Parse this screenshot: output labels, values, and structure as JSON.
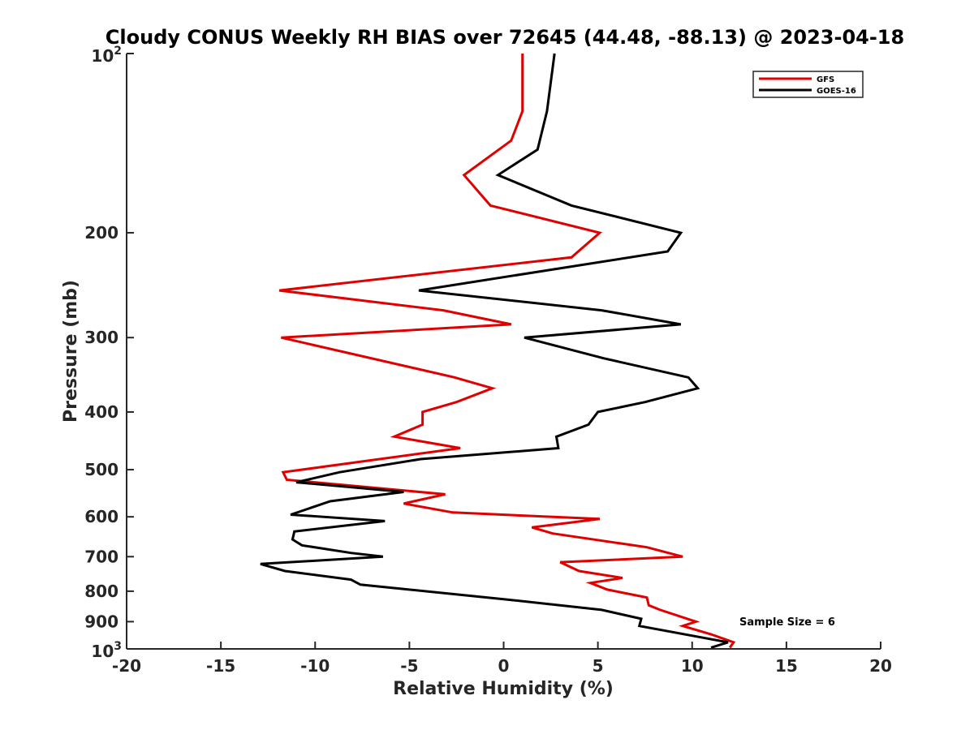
{
  "chart_data": {
    "type": "line",
    "title": "Cloudy CONUS Weekly RH BIAS over 72645 (44.48, -88.13) @ 2023-04-18",
    "xlabel": "Relative Humidity (%)",
    "ylabel": "Pressure (mb)",
    "xlim": [
      -20,
      20
    ],
    "ylim": [
      100,
      1000
    ],
    "yscale": "log",
    "y_reversed": true,
    "grid": false,
    "legend_position": "top-right",
    "x_ticks": [
      "-20",
      "-15",
      "-10",
      "-5",
      "0",
      "5",
      "10",
      "15",
      "20"
    ],
    "y_ticks": [
      {
        "value": 100,
        "base": "10",
        "exp": "2"
      },
      {
        "value": 200,
        "label": "200"
      },
      {
        "value": 300,
        "label": "300"
      },
      {
        "value": 400,
        "label": "400"
      },
      {
        "value": 500,
        "label": "500"
      },
      {
        "value": 600,
        "label": "600"
      },
      {
        "value": 700,
        "label": "700"
      },
      {
        "value": 800,
        "label": "800"
      },
      {
        "value": 900,
        "label": "900"
      },
      {
        "value": 1000,
        "base": "10",
        "exp": "3"
      }
    ],
    "annotation": "Sample Size = 6",
    "series": [
      {
        "name": "GFS",
        "color": "#e00000",
        "points": [
          [
            1.0,
            100
          ],
          [
            1.0,
            125
          ],
          [
            0.4,
            140
          ],
          [
            -2.1,
            160
          ],
          [
            -0.7,
            180
          ],
          [
            5.1,
            200
          ],
          [
            3.6,
            220
          ],
          [
            -11.9,
            250
          ],
          [
            -3.2,
            270
          ],
          [
            0.4,
            285
          ],
          [
            -11.8,
            300
          ],
          [
            -2.6,
            350
          ],
          [
            -0.6,
            365
          ],
          [
            -2.5,
            385
          ],
          [
            -4.3,
            400
          ],
          [
            -4.3,
            420
          ],
          [
            -5.8,
            440
          ],
          [
            -2.3,
            460
          ],
          [
            -11.7,
            505
          ],
          [
            -11.5,
            520
          ],
          [
            -3.1,
            550
          ],
          [
            -5.3,
            570
          ],
          [
            -2.7,
            590
          ],
          [
            5.1,
            605
          ],
          [
            1.5,
            625
          ],
          [
            2.6,
            640
          ],
          [
            7.6,
            675
          ],
          [
            9.5,
            700
          ],
          [
            3.0,
            715
          ],
          [
            4.0,
            740
          ],
          [
            6.3,
            760
          ],
          [
            4.6,
            775
          ],
          [
            5.5,
            795
          ],
          [
            7.6,
            820
          ],
          [
            7.7,
            845
          ],
          [
            8.3,
            860
          ],
          [
            10.2,
            900
          ],
          [
            9.5,
            915
          ],
          [
            11.0,
            945
          ],
          [
            12.2,
            975
          ],
          [
            12.0,
            995
          ]
        ]
      },
      {
        "name": "GOES-16",
        "color": "#000000",
        "points": [
          [
            2.7,
            100
          ],
          [
            2.3,
            125
          ],
          [
            1.8,
            145
          ],
          [
            -0.3,
            160
          ],
          [
            3.6,
            180
          ],
          [
            9.4,
            200
          ],
          [
            8.7,
            215
          ],
          [
            -4.5,
            250
          ],
          [
            5.2,
            270
          ],
          [
            9.4,
            285
          ],
          [
            1.1,
            300
          ],
          [
            5.3,
            325
          ],
          [
            9.8,
            350
          ],
          [
            10.3,
            365
          ],
          [
            7.5,
            385
          ],
          [
            5.0,
            400
          ],
          [
            4.5,
            420
          ],
          [
            2.8,
            440
          ],
          [
            2.9,
            460
          ],
          [
            -4.4,
            480
          ],
          [
            -8.7,
            505
          ],
          [
            -11.0,
            525
          ],
          [
            -5.3,
            545
          ],
          [
            -9.2,
            565
          ],
          [
            -11.3,
            595
          ],
          [
            -6.3,
            610
          ],
          [
            -11.1,
            635
          ],
          [
            -11.2,
            655
          ],
          [
            -10.7,
            670
          ],
          [
            -8.1,
            690
          ],
          [
            -6.4,
            700
          ],
          [
            -12.9,
            720
          ],
          [
            -11.6,
            740
          ],
          [
            -8.1,
            765
          ],
          [
            -7.6,
            780
          ],
          [
            0.0,
            825
          ],
          [
            5.2,
            860
          ],
          [
            7.3,
            890
          ],
          [
            7.2,
            915
          ],
          [
            11.9,
            975
          ],
          [
            11.0,
            995
          ]
        ]
      }
    ]
  }
}
